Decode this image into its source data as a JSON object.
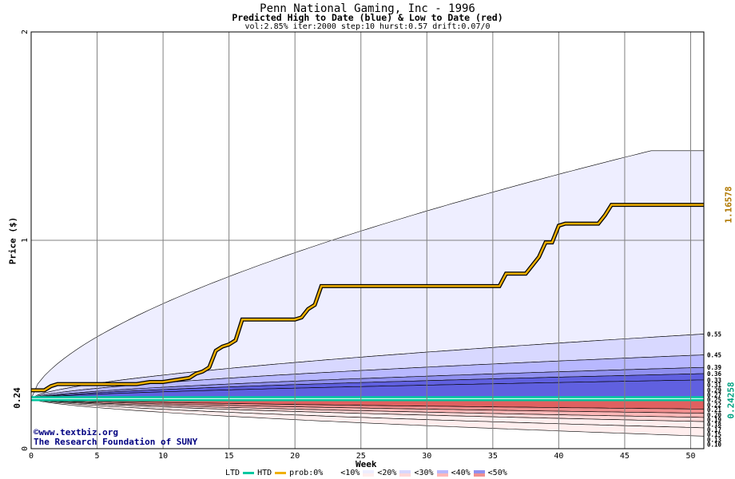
{
  "header": {
    "title": "Penn National Gaming, Inc - 1996",
    "subtitle": "Predicted High to Date (blue) &  Low to Date (red)",
    "params": "vol:2.85% iter:2000 step:10 hurst:0.57 drift:0.07/0"
  },
  "credits": {
    "line1": "©www.textbiz.org",
    "line2": "The Research Foundation of SUNY"
  },
  "axes": {
    "xlabel": "Week",
    "ylabel": "Price ($)",
    "x_ticks": [
      "0",
      "5",
      "10",
      "15",
      "20",
      "25",
      "30",
      "35",
      "40",
      "45",
      "50"
    ],
    "y_ticks": [
      "0",
      "1",
      "2"
    ],
    "current_price_label": "0.24",
    "high_label": "1.16578",
    "low_label": "0.24258"
  },
  "legend": {
    "ltd": "LTD",
    "htd": "HTD",
    "prob0": "prob:0%",
    "p10": "<10%",
    "p20": "<20%",
    "p30": "<30%",
    "p40": "<40%",
    "p50": "<50%"
  },
  "colors": {
    "ltd": "#00c8a0",
    "htd": "#f0b000",
    "band_blue": [
      "#eeeeff",
      "#d8d8ff",
      "#b8b8ff",
      "#9090f0",
      "#6060e0"
    ],
    "band_red": [
      "#ffeeee",
      "#ffd8d8",
      "#ffb8b8",
      "#f09090",
      "#e06060"
    ]
  },
  "chart_data": {
    "type": "area",
    "title": "Penn National Gaming, Inc - 1996",
    "xlabel": "Week",
    "ylabel": "Price ($)",
    "xlim": [
      0,
      51
    ],
    "ylim": [
      0,
      2
    ],
    "grid": true,
    "start_price": 0.24,
    "htd_path": {
      "x": [
        0,
        1,
        1.5,
        2,
        3,
        8,
        9,
        10,
        11,
        12,
        12.5,
        13,
        13.5,
        14,
        14.5,
        15,
        15.5,
        16,
        20,
        20.5,
        21,
        21.5,
        22,
        35.5,
        36,
        37.5,
        38,
        38.5,
        39,
        39.5,
        40,
        40.5,
        43,
        43.5,
        44,
        51
      ],
      "y": [
        0.28,
        0.28,
        0.3,
        0.31,
        0.31,
        0.31,
        0.32,
        0.32,
        0.33,
        0.34,
        0.36,
        0.37,
        0.39,
        0.47,
        0.49,
        0.5,
        0.52,
        0.62,
        0.62,
        0.63,
        0.67,
        0.69,
        0.78,
        0.78,
        0.84,
        0.84,
        0.88,
        0.92,
        0.99,
        0.99,
        1.07,
        1.08,
        1.08,
        1.12,
        1.17,
        1.17
      ]
    },
    "high_bands": [
      {
        "name": "prob:0%",
        "end": 1.43
      },
      {
        "name": "<10%",
        "end": 0.55
      },
      {
        "name": "<20%",
        "end": 0.45
      },
      {
        "name": "<30%",
        "end": 0.39
      },
      {
        "name": "<40%",
        "end": 0.36
      },
      {
        "name": "<50%",
        "end": 0.33
      }
    ],
    "low_bands": [
      {
        "name": "<50%",
        "end": 0.19
      },
      {
        "name": "<40%",
        "end": 0.17
      },
      {
        "name": "<30%",
        "end": 0.15
      },
      {
        "name": "<20%",
        "end": 0.13
      },
      {
        "name": "<10%",
        "end": 0.1
      },
      {
        "name": "prob:0%",
        "end": 0.06
      }
    ],
    "right_labels": [
      "0.55",
      "0.45",
      "0.39",
      "0.36",
      "0.33",
      "0.31",
      "0.29",
      "0.27",
      "0.25",
      "0.22",
      "0.21",
      "0.20",
      "0.19",
      "0.18",
      "0.17",
      "0.15",
      "0.13",
      "0.10"
    ],
    "right_label_values": [
      0.55,
      0.45,
      0.39,
      0.36,
      0.33,
      0.31,
      0.29,
      0.27,
      0.25,
      0.22,
      0.21,
      0.2,
      0.19,
      0.18,
      0.17,
      0.15,
      0.13,
      0.1
    ],
    "high_final": 1.16578,
    "low_final": 0.24258
  }
}
